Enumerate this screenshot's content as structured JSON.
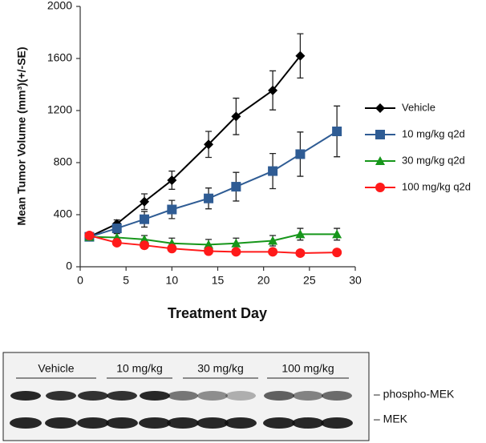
{
  "chart_data": {
    "type": "line",
    "y_label": "Mean Tumor Volume (mm³)(+/-SE)",
    "x_label": "Treatment Day",
    "x": [
      1,
      4,
      7,
      10,
      14,
      17,
      21,
      24,
      28
    ],
    "xlim": [
      0,
      30
    ],
    "xticks": [
      0,
      5,
      10,
      15,
      20,
      25,
      30
    ],
    "ylim": [
      0,
      2000
    ],
    "yticks": [
      0,
      400,
      800,
      1200,
      1600,
      2000
    ],
    "legend": "right",
    "series": [
      {
        "name": "Vehicle",
        "color": "#000000",
        "marker": "diamond",
        "values": [
          230,
          330,
          500,
          665,
          940,
          1155,
          1355,
          1620,
          null
        ],
        "errors": [
          20,
          30,
          60,
          70,
          100,
          140,
          150,
          170,
          null
        ]
      },
      {
        "name": "10 mg/kg q2d",
        "color": "#2f5c94",
        "marker": "square",
        "values": [
          230,
          295,
          365,
          440,
          525,
          615,
          735,
          865,
          1040
        ],
        "errors": [
          20,
          30,
          60,
          70,
          80,
          110,
          135,
          170,
          195
        ]
      },
      {
        "name": "30 mg/kg q2d",
        "color": "#16961a",
        "marker": "triangle",
        "values": [
          230,
          225,
          210,
          180,
          170,
          180,
          200,
          250,
          250
        ],
        "errors": [
          20,
          30,
          30,
          40,
          40,
          40,
          40,
          45,
          45
        ]
      },
      {
        "name": "100 mg/kg q2d",
        "color": "#ff1a1a",
        "marker": "circle",
        "values": [
          240,
          185,
          165,
          140,
          120,
          115,
          115,
          105,
          110
        ],
        "errors": [
          20,
          20,
          25,
          20,
          15,
          15,
          15,
          10,
          10
        ]
      }
    ]
  },
  "blot": {
    "groups": [
      "Vehicle",
      "10 mg/kg",
      "30 mg/kg",
      "100 mg/kg"
    ],
    "bands": [
      "– phospho-MEK",
      "– MEK"
    ]
  }
}
